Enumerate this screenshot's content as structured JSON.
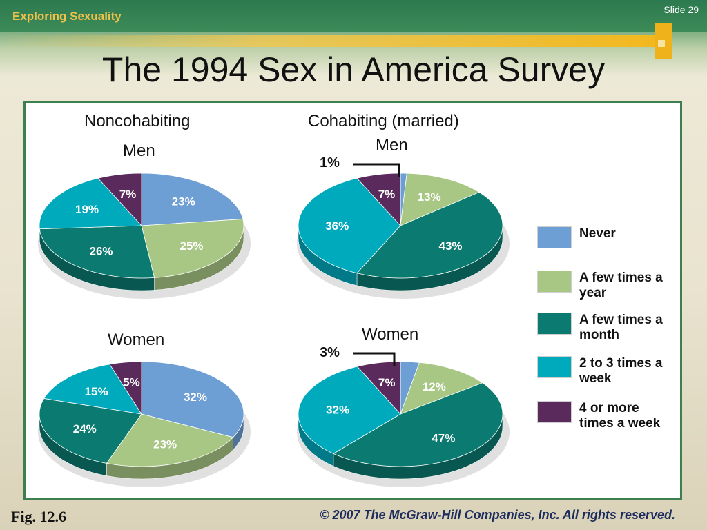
{
  "header": {
    "course": "Exploring Sexuality",
    "slide_label": "Slide 29",
    "title": "The 1994 Sex in America Survey"
  },
  "footer": {
    "fig": "Fig. 12.6",
    "copyright": "© 2007 The McGraw-Hill Companies, Inc. All rights reserved."
  },
  "labels": {
    "noncohab": "Noncohabiting",
    "cohab": "Cohabiting (married)",
    "men_a": "Men",
    "men_b": "Men",
    "women_a": "Women",
    "women_b": "Women",
    "callout_men": "1%",
    "callout_women": "3%"
  },
  "legend": {
    "items": [
      {
        "label": "Never",
        "color": "#6e9fd4"
      },
      {
        "label": "A few times a year",
        "color": "#a8c784"
      },
      {
        "label": "A few times a month",
        "color": "#0b7a70"
      },
      {
        "label": "2 to 3 times a week",
        "color": "#00aabd"
      },
      {
        "label": "4 or more times a week",
        "color": "#5a2a5c"
      }
    ]
  },
  "chart_data": [
    {
      "type": "pie",
      "title": "Noncohabiting Men",
      "categories": [
        "Never",
        "A few times a year",
        "A few times a month",
        "2 to 3 times a week",
        "4 or more times a week"
      ],
      "values": [
        23,
        25,
        26,
        19,
        7
      ]
    },
    {
      "type": "pie",
      "title": "Cohabiting (married) Men",
      "categories": [
        "Never",
        "A few times a year",
        "A few times a month",
        "2 to 3 times a week",
        "4 or more times a week"
      ],
      "values": [
        1,
        13,
        43,
        36,
        7
      ]
    },
    {
      "type": "pie",
      "title": "Noncohabiting Women",
      "categories": [
        "Never",
        "A few times a year",
        "A few times a month",
        "2 to 3 times a week",
        "4 or more times a week"
      ],
      "values": [
        32,
        23,
        24,
        15,
        5
      ]
    },
    {
      "type": "pie",
      "title": "Cohabiting (married) Women",
      "categories": [
        "Never",
        "A few times a year",
        "A few times a month",
        "2 to 3 times a week",
        "4 or more times a week"
      ],
      "values": [
        3,
        12,
        47,
        32,
        7
      ]
    }
  ]
}
